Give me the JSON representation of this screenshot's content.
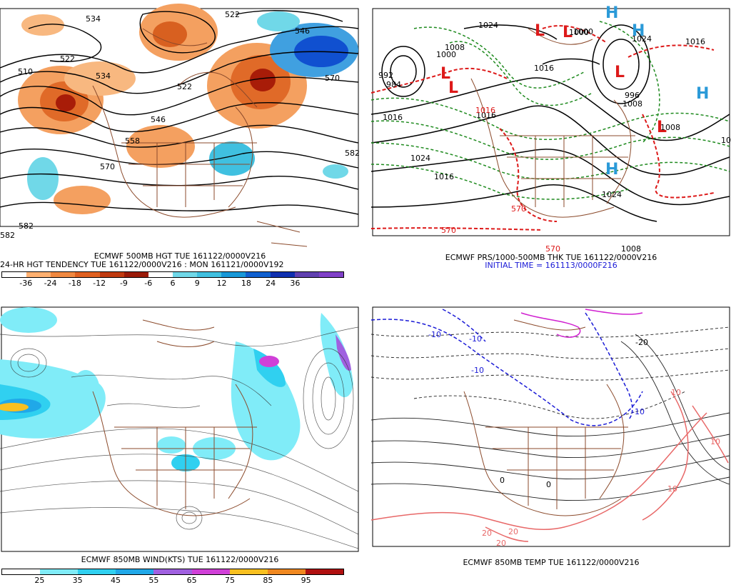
{
  "panels": {
    "p1": {
      "caption1": "ECMWF 500MB HGT TUE 161122/0000V216",
      "caption2": "24-HR HGT TENDENCY TUE 161122/0000V216 : MON 161121/0000V192",
      "contour_labels": [
        "534",
        "522",
        "546",
        "510",
        "522",
        "534",
        "522",
        "546",
        "558",
        "570",
        "582",
        "582",
        "570",
        "582"
      ],
      "colorbar": {
        "colors": [
          "#ffffff",
          "#ffb070",
          "#f08840",
          "#e06020",
          "#c03a10",
          "#9a1a08",
          "#ffffff",
          "#70d8e8",
          "#40c0e0",
          "#1898d8",
          "#1060d0",
          "#1030b0",
          "#6040b0",
          "#8040c8"
        ],
        "ticks": [
          "-36",
          "-24",
          "-18",
          "-12",
          "-9",
          "-6",
          "6",
          "9",
          "12",
          "18",
          "24",
          "36"
        ]
      }
    },
    "p2": {
      "caption1": "ECMWF PRS/1000-500MB THK TUE 161122/0000V216",
      "caption2": "INITIAL TIME = 161113/0000F216",
      "contour_labels": [
        "1024",
        "1008",
        "1000",
        "992",
        "984",
        "1016",
        "1016",
        "1016",
        "1024",
        "1016",
        "1024",
        "1016",
        "1000",
        "1008",
        "1016",
        "1024",
        "1008",
        "1008",
        "570",
        "570",
        "570",
        "1000",
        "996",
        "1016"
      ],
      "low_symbol": "L",
      "high_symbol": "H"
    },
    "p3": {
      "caption1": "ECMWF 850MB WIND(KTS) TUE 161122/0000V216",
      "colorbar": {
        "colors": [
          "#ffffff",
          "#80ecf8",
          "#30d0f0",
          "#20a8e8",
          "#a060e0",
          "#d040d8",
          "#f8c020",
          "#f08820",
          "#b01010"
        ],
        "ticks": [
          "25",
          "35",
          "45",
          "55",
          "65",
          "75",
          "85",
          "95"
        ]
      }
    },
    "p4": {
      "caption1": "ECMWF 850MB TEMP TUE 161122/0000V216",
      "contour_labels": [
        "-10",
        "-10",
        "-10",
        "-10",
        "10",
        "10",
        "20",
        "20",
        "20",
        "-20",
        "0",
        "0",
        "10"
      ]
    }
  }
}
